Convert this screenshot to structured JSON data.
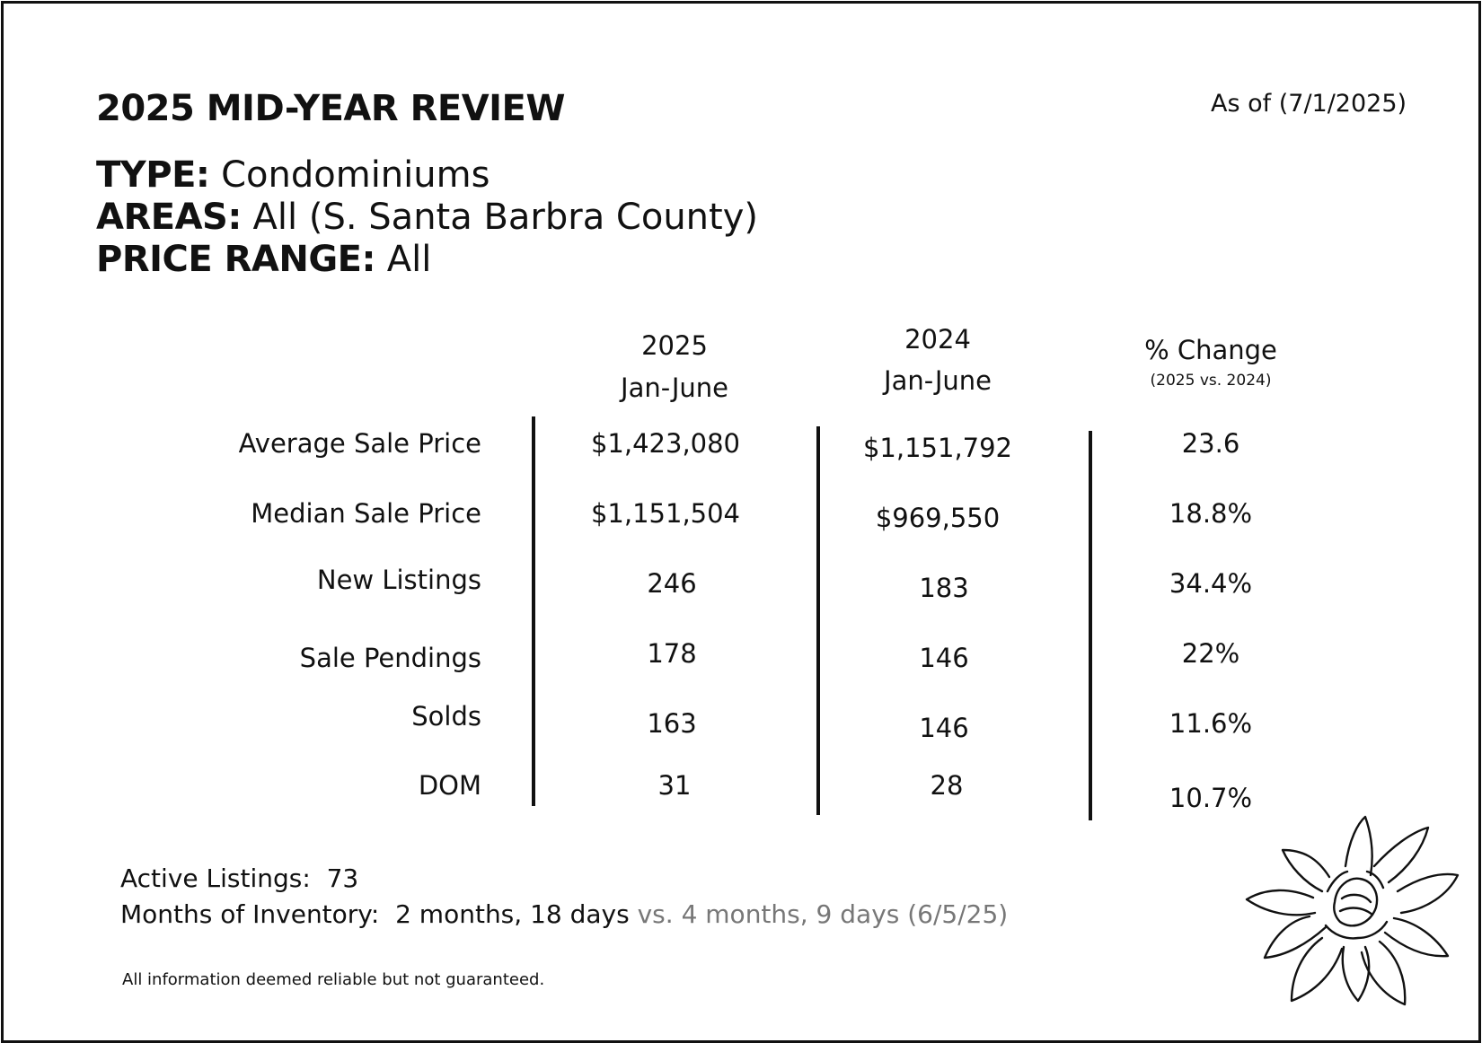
{
  "header": {
    "title": "2025 MID-YEAR REVIEW",
    "as_of": "As of (7/1/2025)"
  },
  "meta": {
    "type_key": "TYPE:",
    "type_value": " Condominiums",
    "areas_key": "AREAS:",
    "areas_value": " All (S. Santa Barbra County)",
    "price_key": "PRICE RANGE:",
    "price_value": " All"
  },
  "table": {
    "columns": [
      {
        "line1": "2025",
        "line2": "Jan-June"
      },
      {
        "line1": "2024",
        "line2": "Jan-June"
      },
      {
        "line1": "% Change",
        "line2": "(2025 vs. 2024)"
      }
    ],
    "rows": [
      {
        "label": "Average Sale Price",
        "v2025": "$1,423,080",
        "v2024": "$1,151,792",
        "change": "23.6"
      },
      {
        "label": "Median Sale Price",
        "v2025": "$1,151,504",
        "v2024": "$969,550",
        "change": "18.8%"
      },
      {
        "label": "New Listings",
        "v2025": "246",
        "v2024": "183",
        "change": "34.4%"
      },
      {
        "label": "Sale Pendings",
        "v2025": "178",
        "v2024": "146",
        "change": "22%"
      },
      {
        "label": "Solds",
        "v2025": "163",
        "v2024": "146",
        "change": "11.6%"
      },
      {
        "label": "DOM",
        "v2025": "31",
        "v2024": "28",
        "change": "10.7%"
      }
    ]
  },
  "footer": {
    "active_label": "Active Listings:",
    "active_value": "73",
    "moi_label": "Months of Inventory:",
    "moi_value": "2 months, 18 days",
    "moi_compare": "vs. 4 months, 9 days (6/5/25)",
    "disclaimer": "All information deemed reliable but not guaranteed."
  },
  "decor": {
    "icon": "magnolia-flower-icon",
    "line_color": "#111111",
    "muted_color": "#777777"
  }
}
